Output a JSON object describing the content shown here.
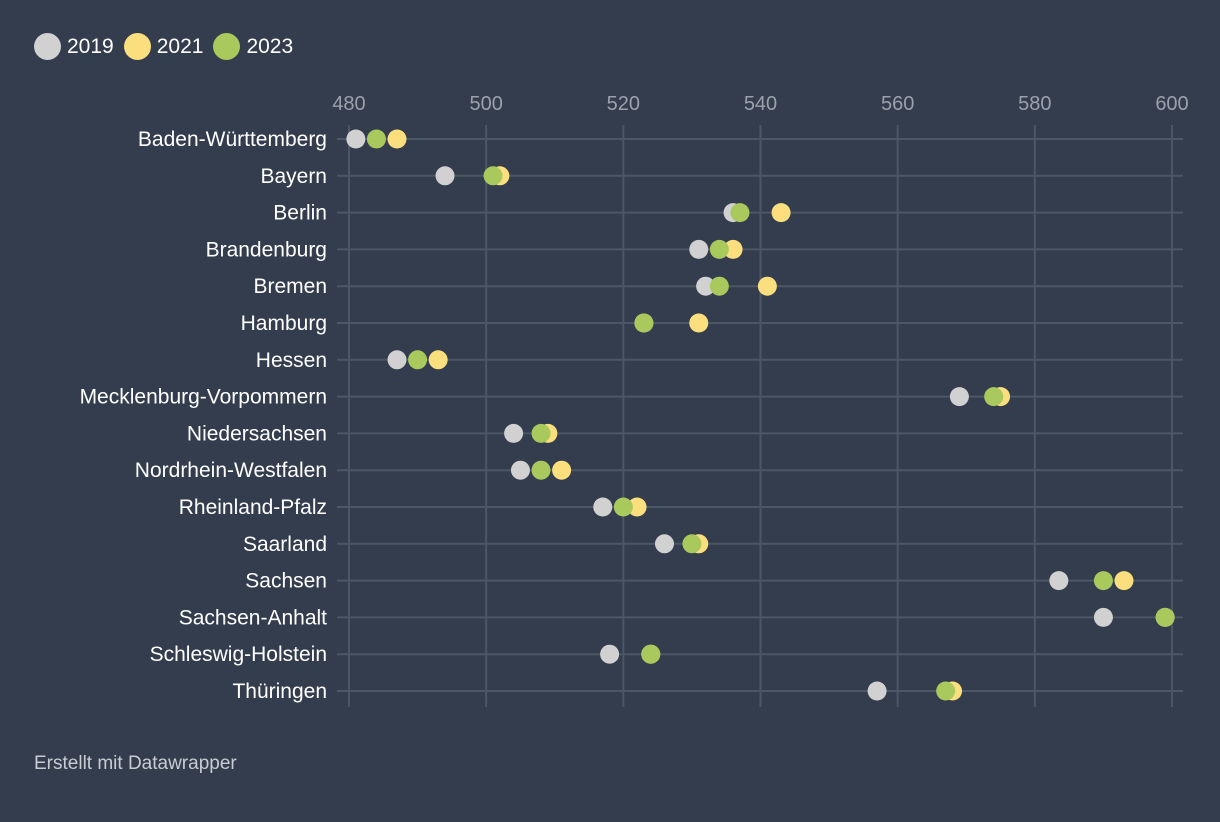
{
  "colors": {
    "background": "#333d4d",
    "grid": "#4c5665",
    "series_2019": "#d1d1d1",
    "series_2021": "#fbdf7f",
    "series_2023": "#a9c95d"
  },
  "footer": {
    "credit": "Erstellt mit Datawrapper"
  },
  "chart_data": {
    "type": "scatter",
    "subtype": "dot-plot",
    "title": "",
    "xlabel": "",
    "ylabel": "",
    "xlim": [
      480,
      600
    ],
    "xticks": [
      480,
      500,
      520,
      540,
      560,
      580,
      600
    ],
    "grid": true,
    "legend_position": "top-left",
    "categories": [
      "Baden-Württemberg",
      "Bayern",
      "Berlin",
      "Brandenburg",
      "Bremen",
      "Hamburg",
      "Hessen",
      "Mecklenburg-Vorpommern",
      "Niedersachsen",
      "Nordrhein-Westfalen",
      "Rheinland-Pfalz",
      "Saarland",
      "Sachsen",
      "Sachsen-Anhalt",
      "Schleswig-Holstein",
      "Thüringen"
    ],
    "series": [
      {
        "name": "2019",
        "color": "#d1d1d1",
        "values": [
          481,
          494,
          536,
          531,
          532,
          523,
          487,
          569,
          504,
          505,
          517,
          526,
          583.5,
          590,
          518,
          557
        ]
      },
      {
        "name": "2021",
        "color": "#fbdf7f",
        "values": [
          487,
          502,
          543,
          536,
          541,
          531,
          493,
          575,
          509,
          511,
          522,
          531,
          593,
          599,
          524,
          568
        ]
      },
      {
        "name": "2023",
        "color": "#a9c95d",
        "values": [
          484,
          501,
          537,
          534,
          534,
          523,
          490,
          574,
          508,
          508,
          520,
          530,
          590,
          599,
          524,
          567
        ]
      }
    ]
  }
}
